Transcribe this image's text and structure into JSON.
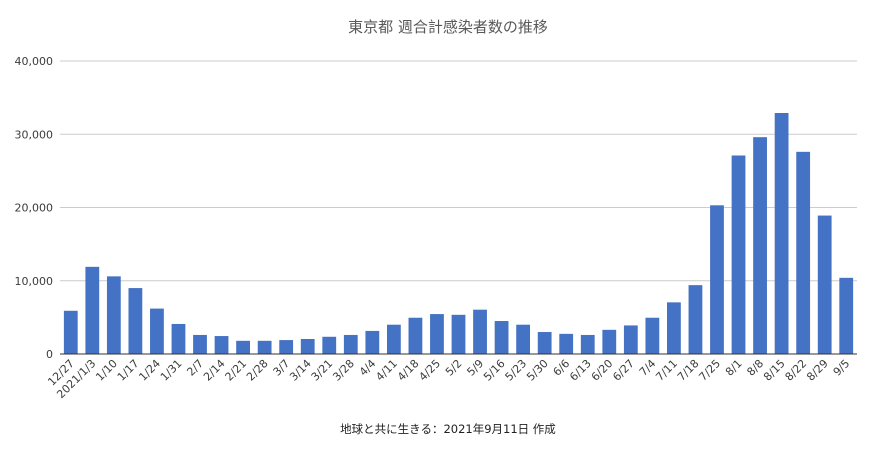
{
  "chart_data": {
    "type": "bar",
    "title": "東京都 週合計感染者数の推移",
    "xlabel": "",
    "ylabel": "",
    "ylim": [
      0,
      40000
    ],
    "yticks": [
      0,
      10000,
      20000,
      30000,
      40000
    ],
    "ytick_labels": [
      "0",
      "10,000",
      "20,000",
      "30,000",
      "40,000"
    ],
    "grid": true,
    "legend": "none",
    "bar_color": "#4472c4",
    "categories": [
      "12/27",
      "2021/1/3",
      "1/10",
      "1/17",
      "1/24",
      "1/31",
      "2/7",
      "2/14",
      "2/21",
      "2/28",
      "3/7",
      "3/14",
      "3/21",
      "3/28",
      "4/4",
      "4/11",
      "4/18",
      "4/25",
      "5/2",
      "5/9",
      "5/16",
      "5/23",
      "5/30",
      "6/6",
      "6/13",
      "6/20",
      "6/27",
      "7/4",
      "7/11",
      "7/18",
      "7/25",
      "8/1",
      "8/8",
      "8/15",
      "8/22",
      "8/29",
      "9/5"
    ],
    "values": [
      5900,
      11900,
      10600,
      9000,
      6200,
      4100,
      2600,
      2450,
      1800,
      1800,
      1900,
      2050,
      2350,
      2600,
      3150,
      4000,
      4950,
      5450,
      5350,
      6050,
      4500,
      4000,
      3000,
      2750,
      2600,
      3300,
      3900,
      4950,
      7050,
      9400,
      20300,
      27100,
      29600,
      32900,
      27600,
      18900,
      10400
    ],
    "footer": "地球と共に生きる：2021年9月11日 作成"
  }
}
